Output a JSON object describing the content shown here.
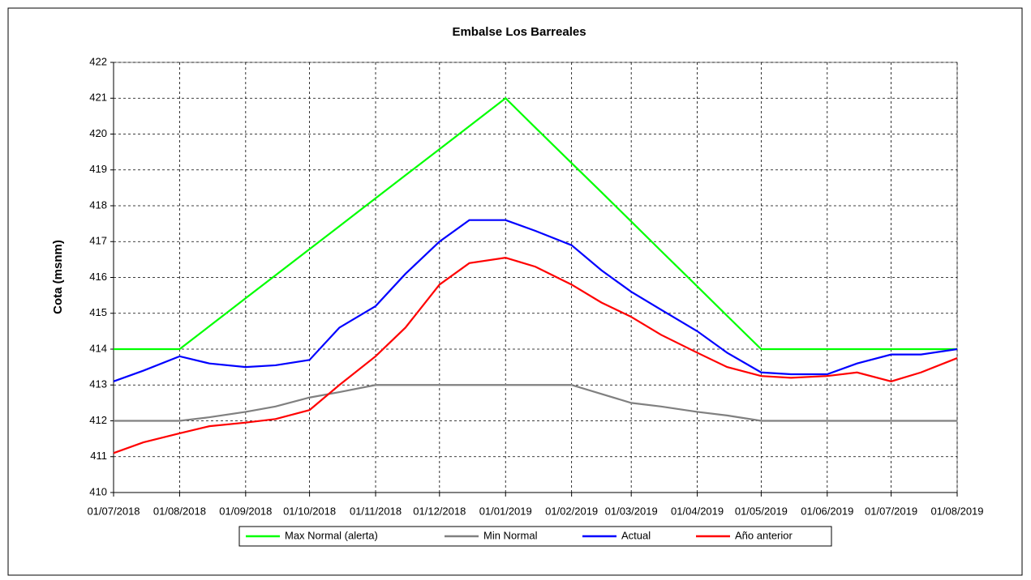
{
  "chart_data": {
    "type": "line",
    "title": "Embalse Los Barreales",
    "y_label": "Cota (msnm)",
    "x": [
      "01/07/2018",
      "15/07/2018",
      "01/08/2018",
      "15/08/2018",
      "01/09/2018",
      "15/09/2018",
      "01/10/2018",
      "15/10/2018",
      "01/11/2018",
      "15/11/2018",
      "01/12/2018",
      "15/12/2018",
      "01/01/2019",
      "15/01/2019",
      "01/02/2019",
      "15/02/2019",
      "01/03/2019",
      "15/03/2019",
      "01/04/2019",
      "15/04/2019",
      "01/05/2019",
      "15/05/2019",
      "01/06/2019",
      "15/06/2019",
      "01/07/2019",
      "15/07/2019",
      "01/08/2019"
    ],
    "series": [
      {
        "name": "Max Normal (alerta)",
        "color": "#00ff00",
        "values": [
          414,
          414,
          414,
          414.64,
          415.42,
          416.06,
          416.79,
          417.43,
          418.21,
          418.85,
          419.58,
          420.22,
          421,
          420.18,
          419.19,
          418.38,
          417.56,
          416.74,
          415.75,
          414.93,
          414,
          414,
          414,
          414,
          414,
          414,
          414
        ]
      },
      {
        "name": "Min Normal",
        "color": "#808080",
        "values": [
          412,
          412,
          412,
          412.1,
          412.25,
          412.4,
          412.65,
          412.8,
          413,
          413,
          413,
          413,
          413,
          413,
          413,
          412.75,
          412.5,
          412.4,
          412.25,
          412.15,
          412,
          412,
          412,
          412,
          412,
          412,
          412
        ]
      },
      {
        "name": "Actual",
        "color": "#0000ff",
        "values": [
          413.1,
          413.4,
          413.8,
          413.6,
          413.5,
          413.55,
          413.7,
          414.6,
          415.2,
          416.1,
          417.0,
          417.6,
          417.6,
          417.3,
          416.9,
          416.2,
          415.6,
          415.1,
          414.5,
          413.9,
          413.35,
          413.3,
          413.3,
          413.6,
          413.85,
          413.85,
          414.0
        ]
      },
      {
        "name": "Año anterior",
        "color": "#ff0000",
        "values": [
          411.1,
          411.4,
          411.65,
          411.85,
          411.95,
          412.05,
          412.3,
          413.0,
          413.8,
          414.6,
          415.8,
          416.4,
          416.55,
          416.3,
          415.8,
          415.3,
          414.9,
          414.4,
          413.9,
          413.5,
          413.25,
          413.2,
          413.25,
          413.35,
          413.1,
          413.35,
          413.75
        ]
      }
    ],
    "xlim": [
      "01/07/2018",
      "01/08/2019"
    ],
    "xticks": [
      "01/07/2018",
      "01/08/2018",
      "01/09/2018",
      "01/10/2018",
      "01/11/2018",
      "01/12/2018",
      "01/01/2019",
      "01/02/2019",
      "01/03/2019",
      "01/04/2019",
      "01/05/2019",
      "01/06/2019",
      "01/07/2019",
      "01/08/2019"
    ],
    "ylim": [
      410,
      422
    ],
    "yticks": [
      410,
      411,
      412,
      413,
      414,
      415,
      416,
      417,
      418,
      419,
      420,
      421,
      422
    ],
    "grid": true,
    "legend": "bottom"
  }
}
